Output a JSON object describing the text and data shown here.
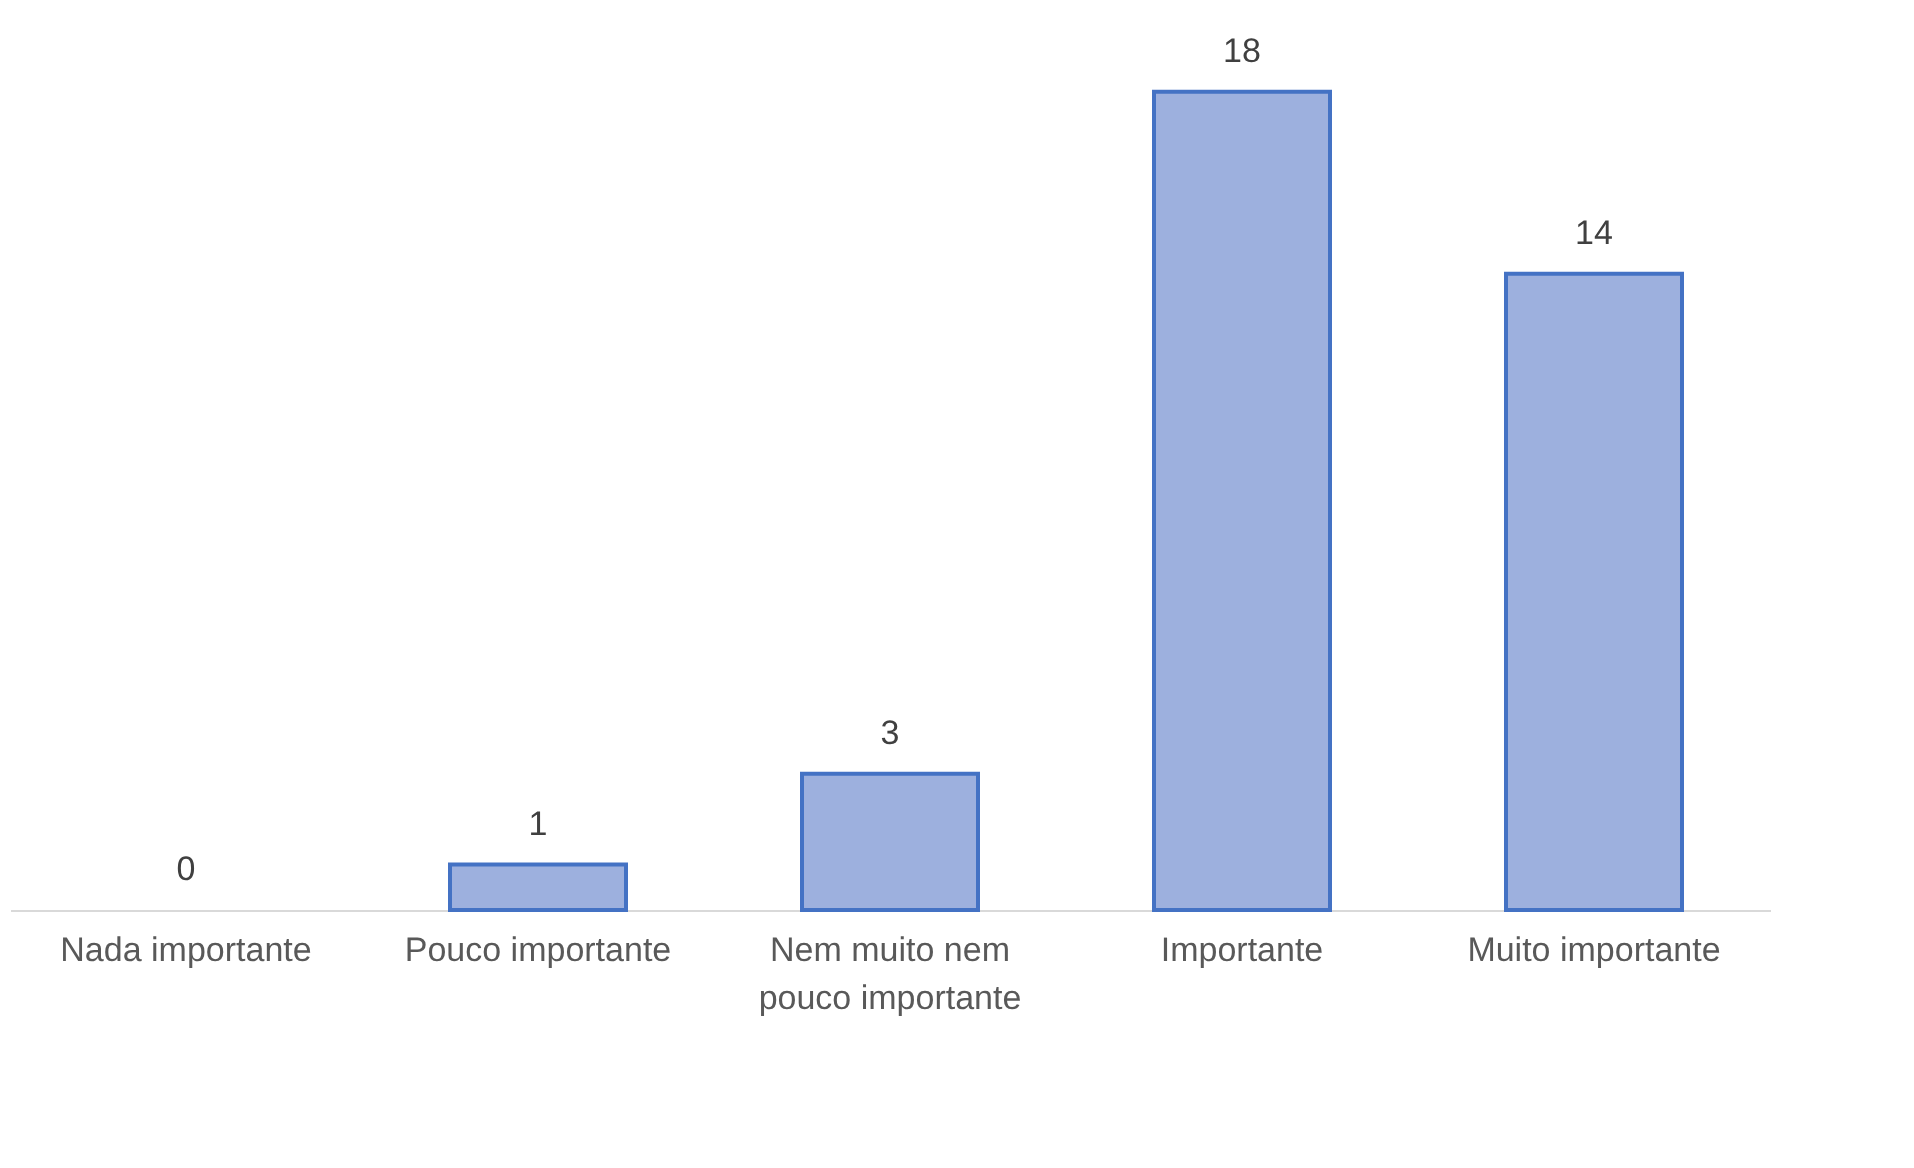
{
  "chart_data": {
    "type": "bar",
    "categories": [
      "Nada importante",
      "Pouco importante",
      "Nem muito nem pouco importante",
      "Importante",
      "Muito importante"
    ],
    "values": [
      0,
      1,
      3,
      18,
      14
    ],
    "color": "#9db0de",
    "data_labels": true,
    "grid": false
  }
}
